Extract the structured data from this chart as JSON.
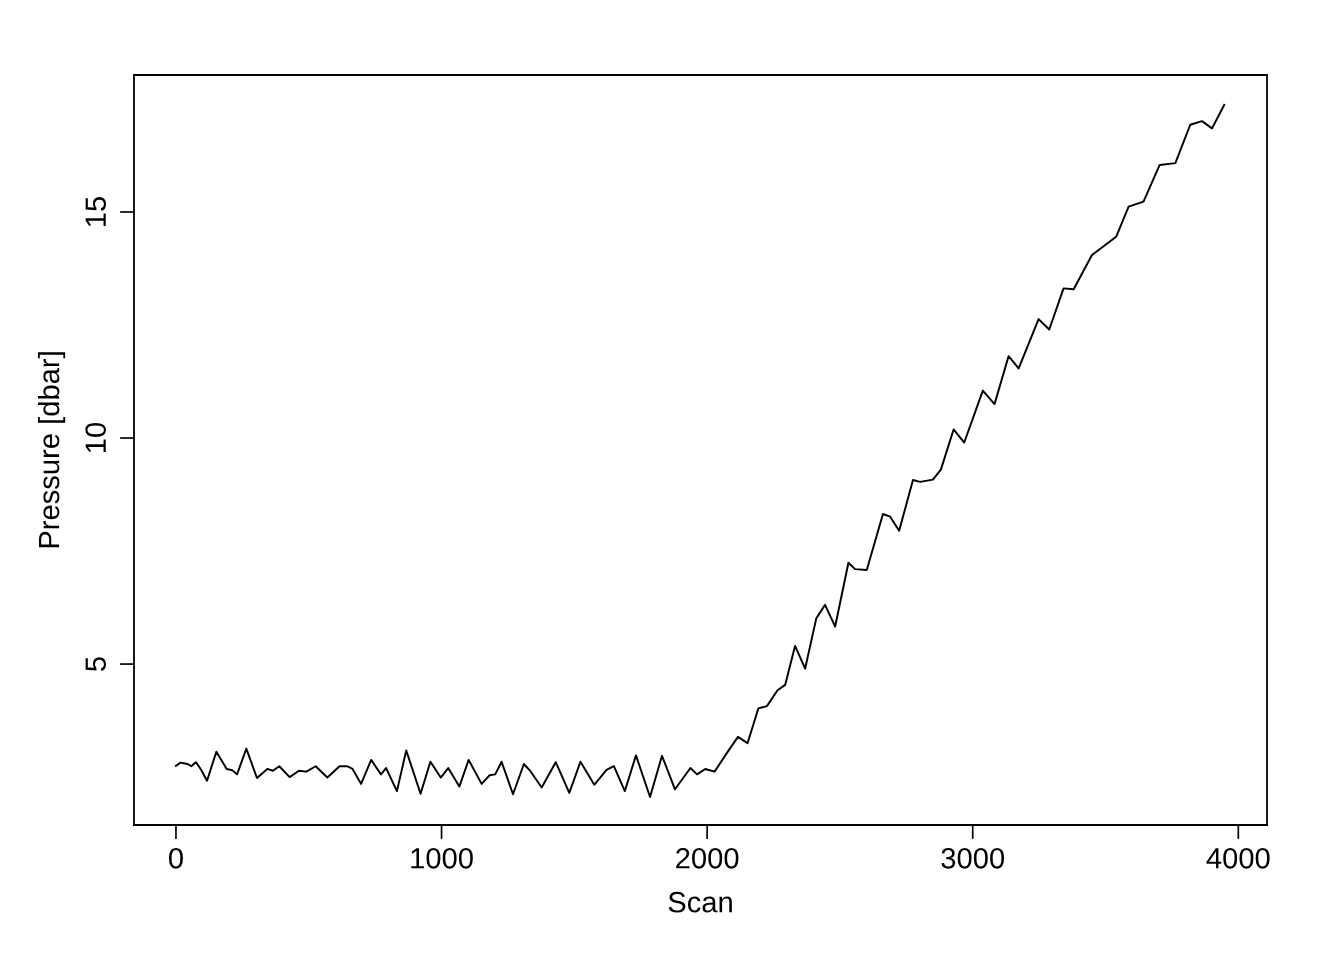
{
  "chart_data": {
    "type": "line",
    "xlabel": "Scan",
    "ylabel": "Pressure [dbar]",
    "xlim": [
      -158,
      4108
    ],
    "ylim": [
      1.44,
      18.03
    ],
    "xticks": [
      0,
      1000,
      2000,
      3000,
      4000
    ],
    "yticks": [
      5,
      10,
      15
    ],
    "grid": false,
    "legend": false,
    "marker": "none",
    "line_style": "solid",
    "series": [
      {
        "color": "#000000",
        "x": [
          0,
          17,
          44,
          58,
          75,
          93,
          117,
          152,
          191,
          212,
          230,
          265,
          305,
          344,
          365,
          389,
          428,
          463,
          491,
          526,
          570,
          616,
          644,
          665,
          697,
          735,
          772,
          791,
          832,
          867,
          921,
          958,
          997,
          1025,
          1067,
          1102,
          1151,
          1181,
          1202,
          1226,
          1269,
          1310,
          1332,
          1377,
          1430,
          1481,
          1523,
          1575,
          1621,
          1649,
          1690,
          1732,
          1785,
          1830,
          1879,
          1937,
          1962,
          1993,
          2028,
          2074,
          2116,
          2152,
          2193,
          2225,
          2265,
          2294,
          2331,
          2369,
          2411,
          2444,
          2482,
          2532,
          2557,
          2601,
          2662,
          2689,
          2723,
          2775,
          2802,
          2850,
          2880,
          2928,
          2968,
          3038,
          3082,
          3135,
          3173,
          3248,
          3288,
          3342,
          3380,
          3449,
          3524,
          3540,
          3587,
          3643,
          3704,
          3763,
          3819,
          3863,
          3901,
          3947
        ],
        "values": [
          2.75,
          2.82,
          2.79,
          2.74,
          2.83,
          2.68,
          2.42,
          3.06,
          2.68,
          2.65,
          2.56,
          3.13,
          2.48,
          2.68,
          2.64,
          2.74,
          2.5,
          2.64,
          2.62,
          2.74,
          2.49,
          2.74,
          2.74,
          2.68,
          2.35,
          2.88,
          2.56,
          2.7,
          2.19,
          3.09,
          2.13,
          2.84,
          2.49,
          2.7,
          2.29,
          2.88,
          2.35,
          2.54,
          2.56,
          2.84,
          2.12,
          2.79,
          2.65,
          2.27,
          2.83,
          2.15,
          2.84,
          2.33,
          2.66,
          2.74,
          2.19,
          2.98,
          2.06,
          2.97,
          2.23,
          2.7,
          2.56,
          2.68,
          2.62,
          3.03,
          3.39,
          3.25,
          4.02,
          4.07,
          4.42,
          4.54,
          5.4,
          4.9,
          6.01,
          6.31,
          5.83,
          7.24,
          7.1,
          7.08,
          8.32,
          8.26,
          7.95,
          9.07,
          9.03,
          9.08,
          9.3,
          10.19,
          9.9,
          11.05,
          10.75,
          11.81,
          11.54,
          12.63,
          12.4,
          13.31,
          13.29,
          14.05,
          14.38,
          14.45,
          15.12,
          15.23,
          16.04,
          16.08,
          16.93,
          17.01,
          16.85,
          17.37
        ]
      }
    ]
  }
}
